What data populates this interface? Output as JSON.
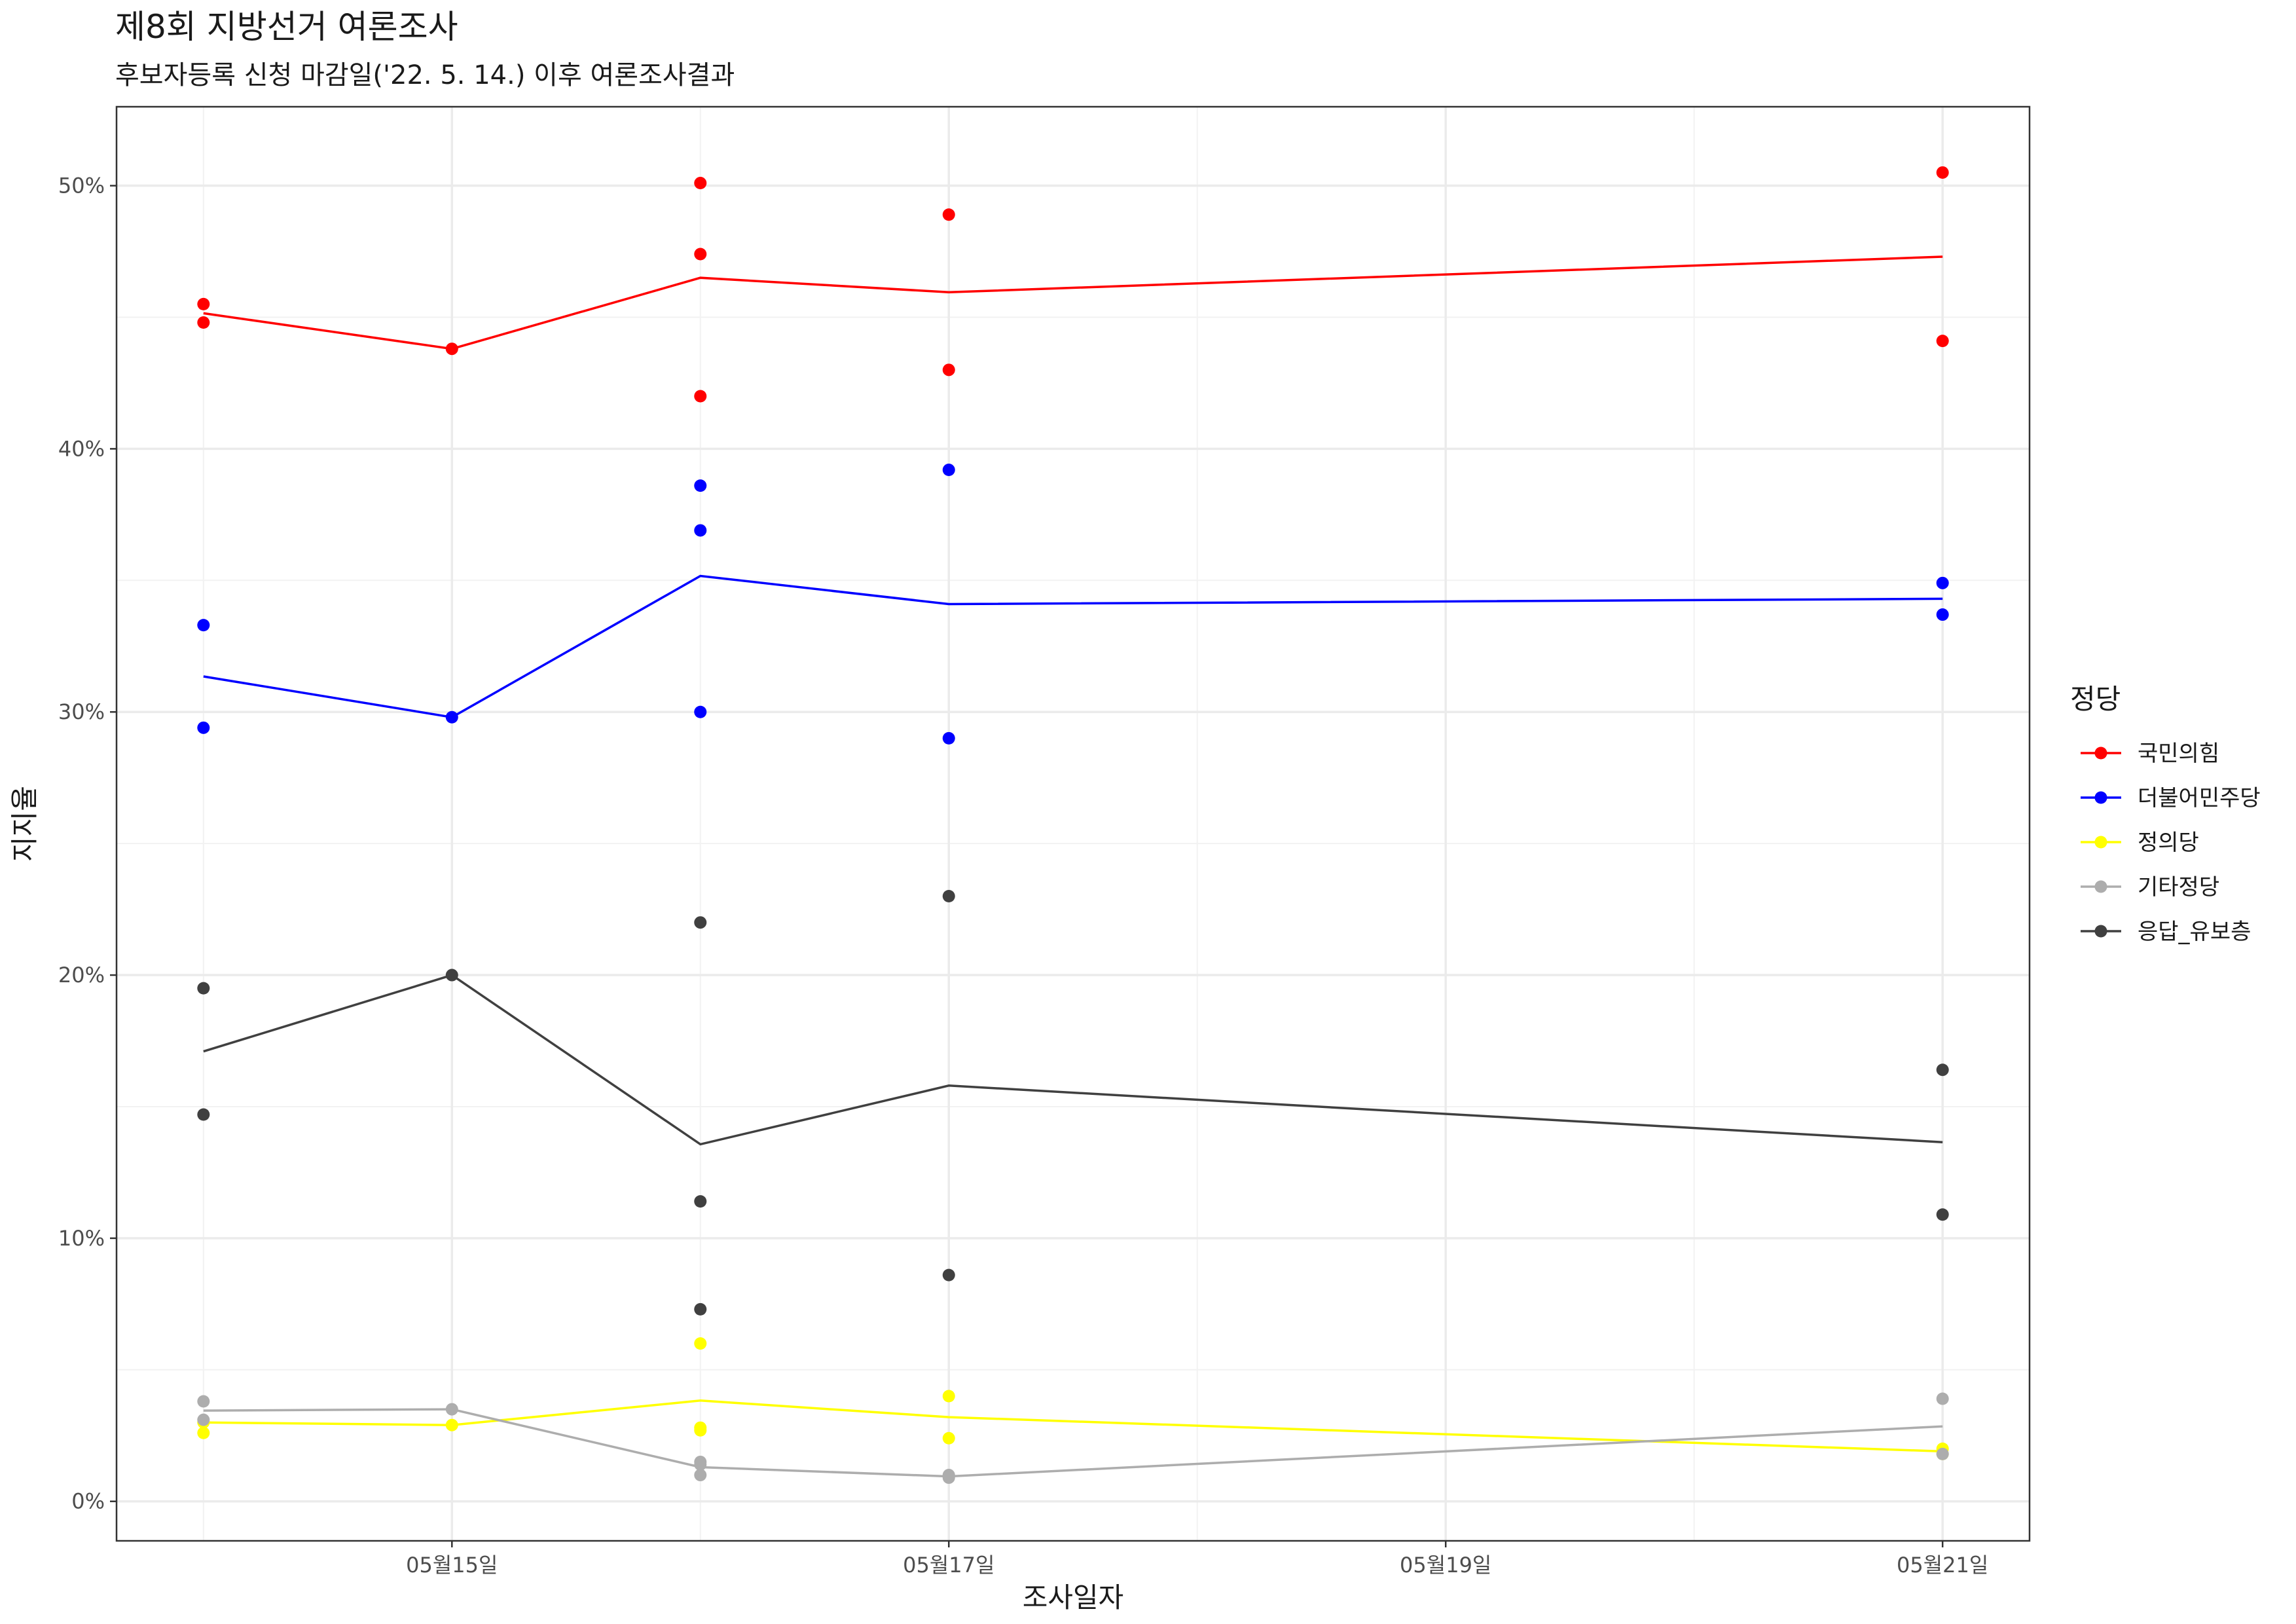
{
  "chart_data": {
    "type": "scatter",
    "title": "제8회 지방선거 여론조사",
    "subtitle": "후보자등록 신청 마감일('22. 5. 14.) 이후 여론조사결과",
    "xlabel": "조사일자",
    "ylabel": "지지율",
    "x_ticks": [
      "05월15일",
      "05월17일",
      "05월19일",
      "05월21일"
    ],
    "x_tick_days": [
      15,
      17,
      19,
      21
    ],
    "xlim": [
      13.65,
      21.35
    ],
    "y_ticks": [
      "0%",
      "10%",
      "20%",
      "30%",
      "40%",
      "50%"
    ],
    "y_tick_values": [
      0,
      10,
      20,
      30,
      40,
      50
    ],
    "ylim": [
      -1.5,
      53
    ],
    "grid": true,
    "legend": {
      "title": "정당",
      "position": "right"
    },
    "series": [
      {
        "name": "국민의힘",
        "color": "#FF0000",
        "points": [
          [
            14,
            45.5
          ],
          [
            14,
            44.8
          ],
          [
            15,
            43.8
          ],
          [
            16,
            50.1
          ],
          [
            16,
            47.4
          ],
          [
            16,
            42.0
          ],
          [
            17,
            48.9
          ],
          [
            17,
            43.0
          ],
          [
            21,
            50.5
          ],
          [
            21,
            44.1
          ]
        ],
        "trend": [
          [
            14,
            45.15
          ],
          [
            15,
            43.8
          ],
          [
            16,
            46.5
          ],
          [
            17,
            45.95
          ],
          [
            21,
            47.3
          ]
        ]
      },
      {
        "name": "더불어민주당",
        "color": "#0000FF",
        "points": [
          [
            14,
            33.3
          ],
          [
            14,
            29.4
          ],
          [
            15,
            29.8
          ],
          [
            16,
            38.6
          ],
          [
            16,
            36.9
          ],
          [
            16,
            30.0
          ],
          [
            17,
            39.2
          ],
          [
            17,
            29.0
          ],
          [
            21,
            34.9
          ],
          [
            21,
            33.7
          ]
        ],
        "trend": [
          [
            14,
            31.35
          ],
          [
            15,
            29.8
          ],
          [
            16,
            35.17
          ],
          [
            17,
            34.1
          ],
          [
            21,
            34.3
          ]
        ]
      },
      {
        "name": "정의당",
        "color": "#FFFF00",
        "points": [
          [
            14,
            3.0
          ],
          [
            14,
            2.6
          ],
          [
            15,
            2.9
          ],
          [
            16,
            6.0
          ],
          [
            16,
            2.8
          ],
          [
            16,
            2.7
          ],
          [
            17,
            4.0
          ],
          [
            17,
            2.4
          ],
          [
            21,
            2.0
          ],
          [
            21,
            1.8
          ]
        ],
        "trend": [
          [
            14,
            3.0
          ],
          [
            15,
            2.9
          ],
          [
            16,
            3.83
          ],
          [
            17,
            3.2
          ],
          [
            21,
            1.9
          ]
        ]
      },
      {
        "name": "기타정당",
        "color": "#ADADAD",
        "points": [
          [
            14,
            3.8
          ],
          [
            14,
            3.1
          ],
          [
            15,
            3.5
          ],
          [
            16,
            1.5
          ],
          [
            16,
            1.4
          ],
          [
            16,
            1.0
          ],
          [
            17,
            1.0
          ],
          [
            17,
            0.9
          ],
          [
            21,
            3.9
          ],
          [
            21,
            1.8
          ]
        ],
        "trend": [
          [
            14,
            3.45
          ],
          [
            15,
            3.5
          ],
          [
            16,
            1.3
          ],
          [
            17,
            0.95
          ],
          [
            21,
            2.85
          ]
        ]
      },
      {
        "name": "응답_유보층",
        "color": "#404040",
        "points": [
          [
            14,
            19.5
          ],
          [
            14,
            14.7
          ],
          [
            15,
            20.0
          ],
          [
            16,
            22.0
          ],
          [
            16,
            11.4
          ],
          [
            16,
            7.3
          ],
          [
            17,
            23.0
          ],
          [
            17,
            8.6
          ],
          [
            21,
            16.4
          ],
          [
            21,
            10.9
          ]
        ],
        "trend": [
          [
            14,
            17.1
          ],
          [
            15,
            20.0
          ],
          [
            16,
            13.57
          ],
          [
            17,
            15.8
          ],
          [
            21,
            13.65
          ]
        ]
      }
    ]
  }
}
